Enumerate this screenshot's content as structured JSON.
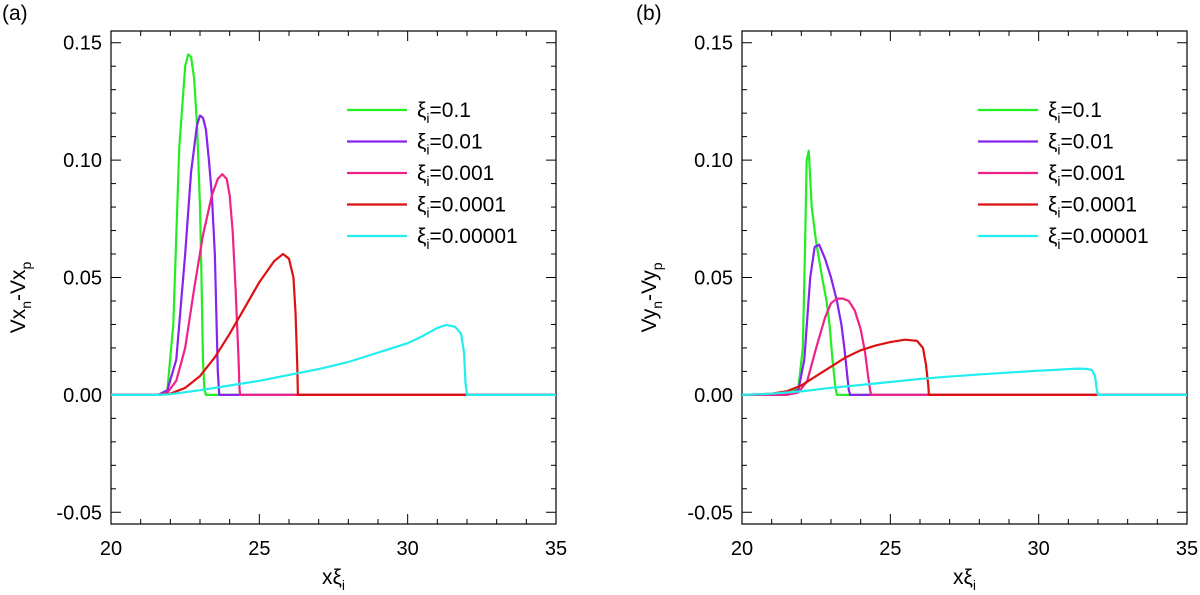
{
  "chart_data": [
    {
      "type": "line",
      "panel": "(a)",
      "xlabel": "xξ",
      "xlabel_sub": "i",
      "ylabel": "Vx",
      "ylabel_parts": [
        "Vx",
        "n",
        "-Vx",
        "p"
      ],
      "xlim": [
        20,
        35
      ],
      "ylim": [
        -0.055,
        0.155
      ],
      "xticks": [
        20,
        25,
        30,
        35
      ],
      "xtick_labels": [
        "20",
        "25",
        "30",
        "35"
      ],
      "yticks": [
        -0.05,
        0.0,
        0.05,
        0.1,
        0.15
      ],
      "ytick_labels": [
        "-0.05",
        "0.00",
        "0.05",
        "0.10",
        "0.15"
      ],
      "legend_position": "top-right",
      "series": [
        {
          "name": "ξi=0.1",
          "label_base": "ξ",
          "label_sub": "i",
          "label_value": "=0.1",
          "color": "#22ee22",
          "x": [
            20,
            21.6,
            21.9,
            22.1,
            22.3,
            22.5,
            22.6,
            22.7,
            22.8,
            22.9,
            23.0,
            23.05,
            23.1,
            23.15,
            23.2,
            35
          ],
          "y": [
            0,
            0,
            0.002,
            0.03,
            0.105,
            0.14,
            0.145,
            0.144,
            0.135,
            0.115,
            0.08,
            0.05,
            0.015,
            0.002,
            0,
            0
          ]
        },
        {
          "name": "ξi=0.01",
          "label_base": "ξ",
          "label_sub": "i",
          "label_value": "=0.01",
          "color": "#8822ee",
          "x": [
            20,
            21.6,
            21.9,
            22.2,
            22.5,
            22.7,
            22.9,
            23.0,
            23.1,
            23.2,
            23.3,
            23.4,
            23.5,
            23.55,
            23.6,
            23.65,
            35
          ],
          "y": [
            0,
            0,
            0.002,
            0.015,
            0.06,
            0.095,
            0.115,
            0.119,
            0.118,
            0.113,
            0.1,
            0.085,
            0.06,
            0.035,
            0.01,
            0,
            0
          ]
        },
        {
          "name": "ξi=0.001",
          "label_base": "ξ",
          "label_sub": "i",
          "label_value": "=0.001",
          "color": "#ee2288",
          "x": [
            20,
            21.6,
            21.9,
            22.2,
            22.5,
            22.8,
            23.1,
            23.4,
            23.6,
            23.75,
            23.9,
            24.0,
            24.1,
            24.2,
            24.3,
            24.33,
            24.35,
            35
          ],
          "y": [
            0,
            0,
            0.001,
            0.006,
            0.02,
            0.045,
            0.068,
            0.085,
            0.092,
            0.094,
            0.092,
            0.085,
            0.07,
            0.045,
            0.015,
            0.003,
            0,
            0
          ]
        },
        {
          "name": "ξi=0.0001",
          "label_base": "ξ",
          "label_sub": "i",
          "label_value": "=0.0001",
          "color": "#dd1111",
          "x": [
            20,
            21.6,
            22.0,
            22.5,
            23.0,
            23.5,
            24.0,
            24.5,
            25.0,
            25.5,
            25.8,
            26.0,
            26.15,
            26.22,
            26.28,
            26.3,
            35
          ],
          "y": [
            0,
            0,
            0.0005,
            0.003,
            0.008,
            0.016,
            0.026,
            0.037,
            0.048,
            0.057,
            0.06,
            0.058,
            0.05,
            0.035,
            0.012,
            0,
            0
          ]
        },
        {
          "name": "ξi=0.00001",
          "label_base": "ξ",
          "label_sub": "i",
          "label_value": "=0.00001",
          "color": "#22eeee",
          "x": [
            20,
            21.6,
            22.0,
            23.0,
            24.0,
            25.0,
            26.0,
            27.0,
            28.0,
            29.0,
            30.0,
            30.5,
            31.0,
            31.3,
            31.6,
            31.8,
            31.9,
            31.95,
            32.0,
            35
          ],
          "y": [
            0,
            0,
            0.0003,
            0.002,
            0.004,
            0.006,
            0.0085,
            0.011,
            0.014,
            0.018,
            0.022,
            0.025,
            0.0285,
            0.0298,
            0.029,
            0.026,
            0.018,
            0.005,
            0,
            0
          ]
        }
      ]
    },
    {
      "type": "line",
      "panel": "(b)",
      "xlabel": "xξ",
      "xlabel_sub": "i",
      "ylabel": "Vy",
      "ylabel_parts": [
        "Vy",
        "n",
        "-Vy",
        "p"
      ],
      "xlim": [
        20,
        35
      ],
      "ylim": [
        -0.055,
        0.155
      ],
      "xticks": [
        20,
        25,
        30,
        35
      ],
      "xtick_labels": [
        "20",
        "25",
        "30",
        "35"
      ],
      "yticks": [
        -0.05,
        0.0,
        0.05,
        0.1,
        0.15
      ],
      "ytick_labels": [
        "-0.05",
        "0.00",
        "0.05",
        "0.10",
        "0.15"
      ],
      "legend_position": "top-right",
      "series": [
        {
          "name": "ξi=0.1",
          "label_base": "ξ",
          "label_sub": "i",
          "label_value": "=0.1",
          "color": "#22ee22",
          "x": [
            20,
            21.5,
            21.9,
            22.05,
            22.12,
            22.18,
            22.25,
            22.35,
            22.5,
            22.7,
            22.85,
            22.95,
            23.05,
            23.15,
            23.2,
            35
          ],
          "y": [
            0,
            0,
            0.003,
            0.02,
            0.06,
            0.1,
            0.104,
            0.08,
            0.065,
            0.05,
            0.04,
            0.03,
            0.015,
            0.003,
            0,
            0
          ]
        },
        {
          "name": "ξi=0.01",
          "label_base": "ξ",
          "label_sub": "i",
          "label_value": "=0.01",
          "color": "#8822ee",
          "x": [
            20,
            21.5,
            21.9,
            22.1,
            22.3,
            22.45,
            22.6,
            22.8,
            23.0,
            23.2,
            23.35,
            23.45,
            23.55,
            23.6,
            23.65,
            35
          ],
          "y": [
            0,
            0,
            0.002,
            0.015,
            0.05,
            0.063,
            0.064,
            0.058,
            0.05,
            0.04,
            0.03,
            0.02,
            0.008,
            0.002,
            0,
            0
          ]
        },
        {
          "name": "ξi=0.001",
          "label_base": "ξ",
          "label_sub": "i",
          "label_value": "=0.001",
          "color": "#ee2288",
          "x": [
            20,
            21.5,
            21.9,
            22.2,
            22.5,
            22.8,
            23.0,
            23.2,
            23.4,
            23.6,
            23.8,
            24.0,
            24.15,
            24.25,
            24.32,
            24.35,
            35
          ],
          "y": [
            0,
            0,
            0.001,
            0.006,
            0.02,
            0.033,
            0.039,
            0.041,
            0.041,
            0.04,
            0.036,
            0.028,
            0.018,
            0.008,
            0.002,
            0,
            0
          ]
        },
        {
          "name": "ξi=0.0001",
          "label_base": "ξ",
          "label_sub": "i",
          "label_value": "=0.0001",
          "color": "#dd1111",
          "x": [
            20,
            21.0,
            21.5,
            22.0,
            22.5,
            23.0,
            23.5,
            24.0,
            24.5,
            25.0,
            25.5,
            25.9,
            26.1,
            26.2,
            26.28,
            26.3,
            35
          ],
          "y": [
            0,
            0.0005,
            0.0015,
            0.004,
            0.008,
            0.012,
            0.016,
            0.019,
            0.021,
            0.0225,
            0.0235,
            0.023,
            0.02,
            0.013,
            0.004,
            0,
            0
          ]
        },
        {
          "name": "ξi=0.00001",
          "label_base": "ξ",
          "label_sub": "i",
          "label_value": "=0.00001",
          "color": "#22eeee",
          "x": [
            20,
            21.0,
            22.0,
            23.0,
            24.0,
            25.0,
            26.0,
            27.0,
            28.0,
            29.0,
            30.0,
            30.5,
            31.0,
            31.3,
            31.6,
            31.8,
            31.9,
            31.95,
            32.0,
            35
          ],
          "y": [
            0,
            0.0005,
            0.0015,
            0.003,
            0.0042,
            0.0055,
            0.0068,
            0.0078,
            0.0087,
            0.0095,
            0.0103,
            0.0106,
            0.011,
            0.0112,
            0.0111,
            0.0105,
            0.008,
            0.003,
            0,
            0
          ]
        }
      ]
    }
  ]
}
